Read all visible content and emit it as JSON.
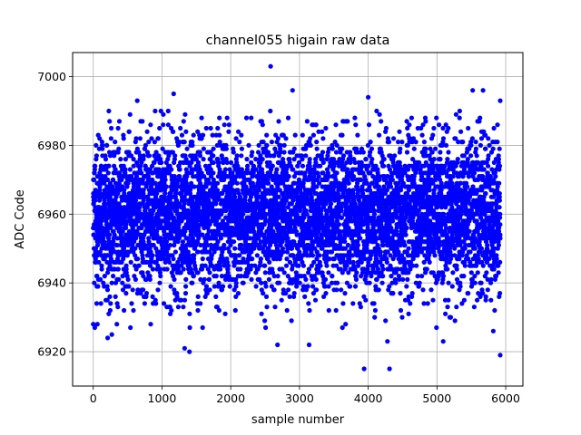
{
  "chart_data": {
    "type": "scatter",
    "title": "channel055 higain raw data",
    "xlabel": "sample number",
    "ylabel": "ADC Code",
    "xlim": [
      -300,
      6250
    ],
    "ylim": [
      6910,
      7007
    ],
    "xticks": [
      0,
      1000,
      2000,
      3000,
      4000,
      5000,
      6000
    ],
    "yticks": [
      6920,
      6940,
      6960,
      6980,
      7000
    ],
    "grid": true,
    "legend": "none",
    "series": [
      {
        "color": "#0000ff",
        "marker": "circle",
        "n_points": 6000,
        "x_range": [
          0,
          5920
        ],
        "y_mean": 6960,
        "y_std": 11,
        "bulk_range": [
          6936,
          6984
        ],
        "notable_points": [
          {
            "x": 2580,
            "y": 7003
          },
          {
            "x": 2900,
            "y": 6996
          },
          {
            "x": 1170,
            "y": 6995
          },
          {
            "x": 5520,
            "y": 6996
          },
          {
            "x": 5670,
            "y": 6996
          },
          {
            "x": 5920,
            "y": 6993
          },
          {
            "x": 4000,
            "y": 6994
          },
          {
            "x": 640,
            "y": 6993
          },
          {
            "x": 3940,
            "y": 6915
          },
          {
            "x": 4310,
            "y": 6915
          },
          {
            "x": 5920,
            "y": 6919
          },
          {
            "x": 1400,
            "y": 6920
          },
          {
            "x": 1330,
            "y": 6921
          },
          {
            "x": 4280,
            "y": 6923
          },
          {
            "x": 5090,
            "y": 6923
          },
          {
            "x": 2680,
            "y": 6922
          },
          {
            "x": 3140,
            "y": 6922
          },
          {
            "x": 210,
            "y": 6924
          },
          {
            "x": 270,
            "y": 6925
          },
          {
            "x": 0,
            "y": 6928
          },
          {
            "x": 60,
            "y": 6928
          },
          {
            "x": 5820,
            "y": 6926
          }
        ]
      }
    ]
  }
}
